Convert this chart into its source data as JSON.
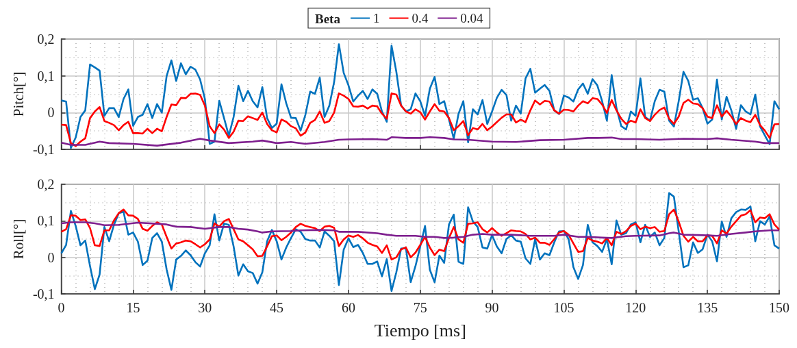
{
  "chart_data": [
    {
      "type": "line",
      "ylabel": "Pitch[°]",
      "legend_title": "Beta",
      "legend": "top",
      "grid": true,
      "marker": "none",
      "tick_labels": "y",
      "xlim": [
        0,
        150
      ],
      "xticks": [
        0,
        15,
        30,
        45,
        60,
        75,
        90,
        105,
        120,
        135,
        150
      ],
      "ylim": [
        -0.1,
        0.2
      ],
      "yticks": [
        {
          "value": -0.1,
          "label": "-0,1"
        },
        0,
        {
          "value": 0.1,
          "label": "0,1"
        },
        {
          "value": 0.2,
          "label": "0,2"
        }
      ],
      "x": [
        0,
        1,
        2,
        3,
        4,
        5,
        6,
        7,
        8,
        9,
        10,
        11,
        12,
        13,
        14,
        15,
        16,
        17,
        18,
        19,
        20,
        21,
        22,
        23,
        24,
        25,
        26,
        27,
        28,
        29,
        30,
        31,
        32,
        33,
        34,
        35,
        36,
        37,
        38,
        39,
        40,
        41,
        42,
        43,
        44,
        45,
        46,
        47,
        48,
        49,
        50,
        51,
        52,
        53,
        54,
        55,
        56,
        57,
        58,
        59,
        60,
        61,
        62,
        63,
        64,
        65,
        66,
        67,
        68,
        69,
        70,
        71,
        72,
        73,
        74,
        75,
        76,
        77,
        78,
        79,
        80,
        81,
        82,
        83,
        84,
        85,
        86,
        87,
        88,
        89,
        90,
        91,
        92,
        93,
        94,
        95,
        96,
        97,
        98,
        99,
        100,
        101,
        102,
        103,
        104,
        105,
        106,
        107,
        108,
        109,
        110,
        111,
        112,
        113,
        114,
        115,
        116,
        117,
        118,
        119,
        120,
        121,
        122,
        123,
        124,
        125,
        126,
        127,
        128,
        129,
        130,
        131,
        132,
        133,
        134,
        135,
        136,
        137,
        138,
        139,
        140,
        141,
        142,
        143,
        144,
        145,
        146,
        147,
        148,
        149,
        150
      ],
      "series": [
        {
          "name": "1",
          "color": "#0072bd",
          "values": [
            0.033,
            0.03,
            -0.096,
            -0.068,
            -0.012,
            0.006,
            0.131,
            0.123,
            0.114,
            -0.009,
            0.012,
            0.012,
            -0.012,
            0.037,
            0.063,
            -0.036,
            -0.012,
            -0.006,
            0.023,
            -0.015,
            0.023,
            0,
            0.099,
            0.142,
            0.086,
            0.134,
            0.104,
            0.125,
            0.117,
            0.09,
            0.037,
            -0.085,
            -0.079,
            0.032,
            -0.015,
            -0.063,
            -0.012,
            0.073,
            0.031,
            0.059,
            0.031,
            0.014,
            0.069,
            -0.015,
            -0.042,
            -0.03,
            0.077,
            0.025,
            -0.014,
            -0.015,
            -0.049,
            -0.006,
            0.057,
            0.051,
            0.095,
            -0.012,
            0.019,
            0.083,
            0.186,
            0.108,
            0.074,
            0.03,
            0.046,
            0.059,
            0.037,
            0.063,
            0.051,
            0.003,
            -0.025,
            0.182,
            0.111,
            0.019,
            0.003,
            0.009,
            0.052,
            0.031,
            -0.009,
            0.065,
            0.097,
            0.023,
            0.031,
            -0.019,
            -0.071,
            -0.003,
            0.031,
            -0.081,
            0.009,
            -0.005,
            0.034,
            -0.031,
            0.003,
            0.04,
            0.062,
            0.048,
            -0.022,
            0.019,
            -0.003,
            0.093,
            0.119,
            0.054,
            0.065,
            0.075,
            0.059,
            0.006,
            -0.004,
            0.046,
            0.041,
            0.03,
            0.063,
            0.079,
            0.051,
            0.091,
            0.074,
            0.031,
            -0.022,
            0.102,
            0.012,
            -0.037,
            -0.046,
            0.003,
            -0.009,
            0.093,
            -0.012,
            -0.022,
            0.031,
            0.062,
            0.057,
            -0.022,
            -0.038,
            0.031,
            0.111,
            0.086,
            0.035,
            0.039,
            0.012,
            -0.03,
            -0.019,
            0.09,
            -0.019,
            0.043,
            0.006,
            -0.044,
            0.02,
            0.003,
            -0.005,
            0.049,
            -0.038,
            -0.062,
            -0.086,
            0.031,
            0.009
          ]
        },
        {
          "name": "0.4",
          "color": "#ff0000",
          "values": [
            -0.033,
            -0.034,
            -0.083,
            -0.091,
            -0.079,
            -0.07,
            -0.015,
            0.003,
            0.015,
            -0.023,
            -0.028,
            -0.034,
            -0.048,
            -0.034,
            -0.025,
            -0.056,
            -0.056,
            -0.057,
            -0.044,
            -0.056,
            -0.044,
            -0.051,
            -0.012,
            0.022,
            0.02,
            0.04,
            0.039,
            0.051,
            0.052,
            0.048,
            0.019,
            -0.037,
            -0.056,
            -0.032,
            -0.046,
            -0.069,
            -0.052,
            -0.022,
            -0.023,
            -0.01,
            -0.015,
            -0.02,
            0,
            -0.031,
            -0.048,
            -0.054,
            -0.019,
            -0.025,
            -0.037,
            -0.043,
            -0.063,
            -0.054,
            -0.028,
            -0.02,
            0.003,
            -0.028,
            -0.023,
            0,
            0.052,
            0.046,
            0.037,
            0.017,
            0.016,
            0.019,
            0.011,
            0.019,
            0.017,
            -0.003,
            -0.017,
            0.052,
            0.049,
            0.019,
            0.003,
            -0.003,
            0.009,
            0.001,
            -0.019,
            0.003,
            0.023,
            0.005,
            0.003,
            -0.015,
            -0.048,
            -0.037,
            -0.023,
            -0.062,
            -0.042,
            -0.046,
            -0.031,
            -0.048,
            -0.038,
            -0.026,
            -0.014,
            -0.005,
            -0.005,
            -0.027,
            -0.019,
            -0.026,
            0.006,
            0.033,
            0.022,
            0.032,
            0.03,
            0.006,
            -0.003,
            0.008,
            0.007,
            0.003,
            0.019,
            0.031,
            0.025,
            0.039,
            0.037,
            0.022,
            -0.001,
            0.034,
            0.006,
            -0.017,
            -0.031,
            -0.022,
            -0.027,
            0.009,
            -0.015,
            -0.023,
            -0.006,
            0.007,
            0.014,
            -0.017,
            -0.031,
            -0.011,
            0.026,
            0.035,
            0.025,
            0.023,
            0.012,
            -0.011,
            -0.015,
            0.02,
            -0.011,
            0.005,
            -0.011,
            -0.031,
            -0.015,
            -0.022,
            -0.026,
            -0.006,
            -0.034,
            -0.049,
            -0.069,
            -0.032,
            -0.031
          ]
        },
        {
          "name": "0.04",
          "color": "#7e1f8e",
          "x": [
            0,
            2,
            5,
            8,
            10,
            15,
            20,
            25,
            28,
            29,
            31,
            35,
            40,
            42,
            45,
            48,
            51,
            55,
            58,
            60,
            65,
            68,
            69,
            72,
            75,
            77,
            80,
            82,
            85,
            90,
            95,
            100,
            105,
            110,
            112,
            115,
            117,
            120,
            125,
            130,
            135,
            137,
            140,
            145,
            147,
            150
          ],
          "values": [
            -0.082,
            -0.088,
            -0.088,
            -0.079,
            -0.083,
            -0.085,
            -0.09,
            -0.082,
            -0.074,
            -0.071,
            -0.076,
            -0.083,
            -0.079,
            -0.076,
            -0.083,
            -0.08,
            -0.085,
            -0.08,
            -0.074,
            -0.073,
            -0.072,
            -0.074,
            -0.067,
            -0.069,
            -0.069,
            -0.067,
            -0.069,
            -0.073,
            -0.074,
            -0.079,
            -0.08,
            -0.075,
            -0.074,
            -0.069,
            -0.069,
            -0.068,
            -0.072,
            -0.072,
            -0.074,
            -0.071,
            -0.072,
            -0.07,
            -0.074,
            -0.079,
            -0.083,
            -0.083
          ]
        }
      ]
    },
    {
      "type": "line",
      "ylabel": "Roll[°]",
      "xlabel": "Tiempo [ms]",
      "grid": true,
      "marker": "none",
      "xlim": [
        0,
        150
      ],
      "xticks": [
        0,
        15,
        30,
        45,
        60,
        75,
        90,
        105,
        120,
        135,
        150
      ],
      "ylim": [
        -0.1,
        0.2
      ],
      "yticks": [
        {
          "value": -0.1,
          "label": "-0,1"
        },
        0,
        {
          "value": 0.1,
          "label": "0,1"
        },
        {
          "value": 0.2,
          "label": "0,2"
        }
      ],
      "x": [
        0,
        1,
        2,
        3,
        4,
        5,
        6,
        7,
        8,
        9,
        10,
        11,
        12,
        13,
        14,
        15,
        16,
        17,
        18,
        19,
        20,
        21,
        22,
        23,
        24,
        25,
        26,
        27,
        28,
        29,
        30,
        31,
        32,
        33,
        34,
        35,
        36,
        37,
        38,
        39,
        40,
        41,
        42,
        43,
        44,
        45,
        46,
        47,
        48,
        49,
        50,
        51,
        52,
        53,
        54,
        55,
        56,
        57,
        58,
        59,
        60,
        61,
        62,
        63,
        64,
        65,
        66,
        67,
        68,
        69,
        70,
        71,
        72,
        73,
        74,
        75,
        76,
        77,
        78,
        79,
        80,
        81,
        82,
        83,
        84,
        85,
        86,
        87,
        88,
        89,
        90,
        91,
        92,
        93,
        94,
        95,
        96,
        97,
        98,
        99,
        100,
        101,
        102,
        103,
        104,
        105,
        106,
        107,
        108,
        109,
        110,
        111,
        112,
        113,
        114,
        115,
        116,
        117,
        118,
        119,
        120,
        121,
        122,
        123,
        124,
        125,
        126,
        127,
        128,
        129,
        130,
        131,
        132,
        133,
        134,
        135,
        136,
        137,
        138,
        139,
        140,
        141,
        142,
        143,
        144,
        145,
        146,
        147,
        148,
        149,
        150
      ],
      "series": [
        {
          "name": "1",
          "color": "#0072bd",
          "values": [
            0.011,
            0.034,
            0.127,
            0.086,
            0.033,
            0.046,
            -0.024,
            -0.087,
            -0.047,
            0.083,
            0.044,
            0.089,
            0.121,
            0.125,
            0.062,
            0.068,
            0.043,
            -0.021,
            -0.009,
            0.053,
            0.066,
            0.043,
            -0.033,
            -0.089,
            -0.006,
            0.004,
            0.019,
            0.006,
            -0.013,
            -0.025,
            0.011,
            0.033,
            0.118,
            0.046,
            0.092,
            0.089,
            0.03,
            -0.05,
            -0.019,
            -0.038,
            -0.043,
            -0.072,
            -0.041,
            0.044,
            0.075,
            0.044,
            -0.006,
            0.027,
            0.053,
            0.077,
            0.07,
            0.05,
            0.046,
            0.046,
            0.027,
            0.071,
            0.059,
            0.044,
            -0.076,
            0.021,
            0.052,
            0.028,
            0.034,
            0.012,
            -0.018,
            -0.018,
            -0.011,
            -0.052,
            -0.005,
            -0.092,
            -0.041,
            0.024,
            0.025,
            -0.068,
            -0.024,
            0.03,
            0.086,
            -0.034,
            -0.068,
            0.005,
            -0.015,
            0.09,
            0.117,
            -0.012,
            -0.018,
            0.137,
            0.098,
            0.083,
            0.027,
            0.024,
            0.061,
            0.03,
            0.011,
            0.05,
            0.061,
            0.046,
            0.043,
            -0.003,
            -0.018,
            0.05,
            -0.006,
            0.011,
            0.006,
            0.041,
            0.071,
            0.072,
            0.05,
            -0.027,
            -0.059,
            -0.021,
            0.089,
            0.041,
            0.031,
            0.015,
            0.05,
            -0.019,
            0.101,
            0.062,
            0.066,
            0.09,
            0.096,
            0.041,
            0.089,
            0.056,
            0.068,
            0.033,
            0.053,
            0.176,
            0.166,
            0.071,
            -0.027,
            -0.022,
            0.041,
            0.012,
            0.022,
            0.062,
            0.044,
            -0.011,
            0.098,
            0.056,
            0.107,
            0.124,
            0.131,
            0.13,
            0.139,
            0.044,
            0.099,
            0.09,
            0.112,
            0.033,
            0.024
          ]
        },
        {
          "name": "0.4",
          "color": "#ff0000",
          "values": [
            0.07,
            0.077,
            0.115,
            0.114,
            0.102,
            0.104,
            0.08,
            0.033,
            0.031,
            0.074,
            0.074,
            0.101,
            0.121,
            0.131,
            0.115,
            0.114,
            0.105,
            0.078,
            0.073,
            0.086,
            0.096,
            0.09,
            0.056,
            0.024,
            0.038,
            0.041,
            0.046,
            0.044,
            0.036,
            0.027,
            0.036,
            0.049,
            0.093,
            0.084,
            0.099,
            0.105,
            0.077,
            0.049,
            0.044,
            0.033,
            0.022,
            0.003,
            0.004,
            0.03,
            0.058,
            0.06,
            0.047,
            0.056,
            0.068,
            0.083,
            0.092,
            0.086,
            0.083,
            0.08,
            0.072,
            0.084,
            0.086,
            0.081,
            0.031,
            0.049,
            0.06,
            0.056,
            0.061,
            0.052,
            0.04,
            0.034,
            0.03,
            0.012,
            0.033,
            -0.006,
            0,
            0.022,
            0.027,
            0,
            0.013,
            0.034,
            0.056,
            0.027,
            0.006,
            0.021,
            0.017,
            0.053,
            0.083,
            0.049,
            0.04,
            0.092,
            0.093,
            0.096,
            0.077,
            0.068,
            0.08,
            0.068,
            0.059,
            0.066,
            0.074,
            0.072,
            0.071,
            0.064,
            0.049,
            0.054,
            0.04,
            0.04,
            0.034,
            0.05,
            0.068,
            0.072,
            0.062,
            0.038,
            0.015,
            0.017,
            0.053,
            0.046,
            0.043,
            0.038,
            0.053,
            0.033,
            0.07,
            0.064,
            0.072,
            0.086,
            0.092,
            0.077,
            0.084,
            0.08,
            0.083,
            0.07,
            0.072,
            0.118,
            0.131,
            0.098,
            0.059,
            0.043,
            0.056,
            0.044,
            0.044,
            0.06,
            0.059,
            0.038,
            0.074,
            0.065,
            0.084,
            0.099,
            0.114,
            0.118,
            0.129,
            0.096,
            0.109,
            0.107,
            0.118,
            0.09,
            0.076
          ]
        },
        {
          "name": "0.04",
          "color": "#7e1f8e",
          "x": [
            0,
            2,
            5,
            7,
            9,
            12,
            16,
            20,
            22,
            24,
            27,
            30,
            33,
            35,
            37,
            39,
            41,
            42,
            44,
            48,
            50,
            54,
            57,
            58,
            62,
            66,
            68,
            70,
            74,
            76,
            78,
            80,
            82,
            84,
            86,
            88,
            90,
            94,
            98,
            100,
            103,
            105,
            108,
            110,
            113,
            115,
            118,
            120,
            125,
            127,
            128,
            130,
            133,
            135,
            137,
            140,
            143,
            145,
            148,
            150
          ],
          "values": [
            0.093,
            0.096,
            0.096,
            0.093,
            0.088,
            0.089,
            0.095,
            0.092,
            0.09,
            0.084,
            0.083,
            0.078,
            0.083,
            0.083,
            0.078,
            0.076,
            0.071,
            0.068,
            0.071,
            0.072,
            0.074,
            0.075,
            0.074,
            0.07,
            0.07,
            0.066,
            0.062,
            0.059,
            0.059,
            0.056,
            0.056,
            0.053,
            0.054,
            0.056,
            0.062,
            0.064,
            0.062,
            0.062,
            0.059,
            0.059,
            0.059,
            0.062,
            0.056,
            0.056,
            0.054,
            0.053,
            0.058,
            0.059,
            0.06,
            0.066,
            0.068,
            0.062,
            0.061,
            0.06,
            0.059,
            0.064,
            0.068,
            0.071,
            0.074,
            0.074
          ]
        }
      ]
    }
  ]
}
